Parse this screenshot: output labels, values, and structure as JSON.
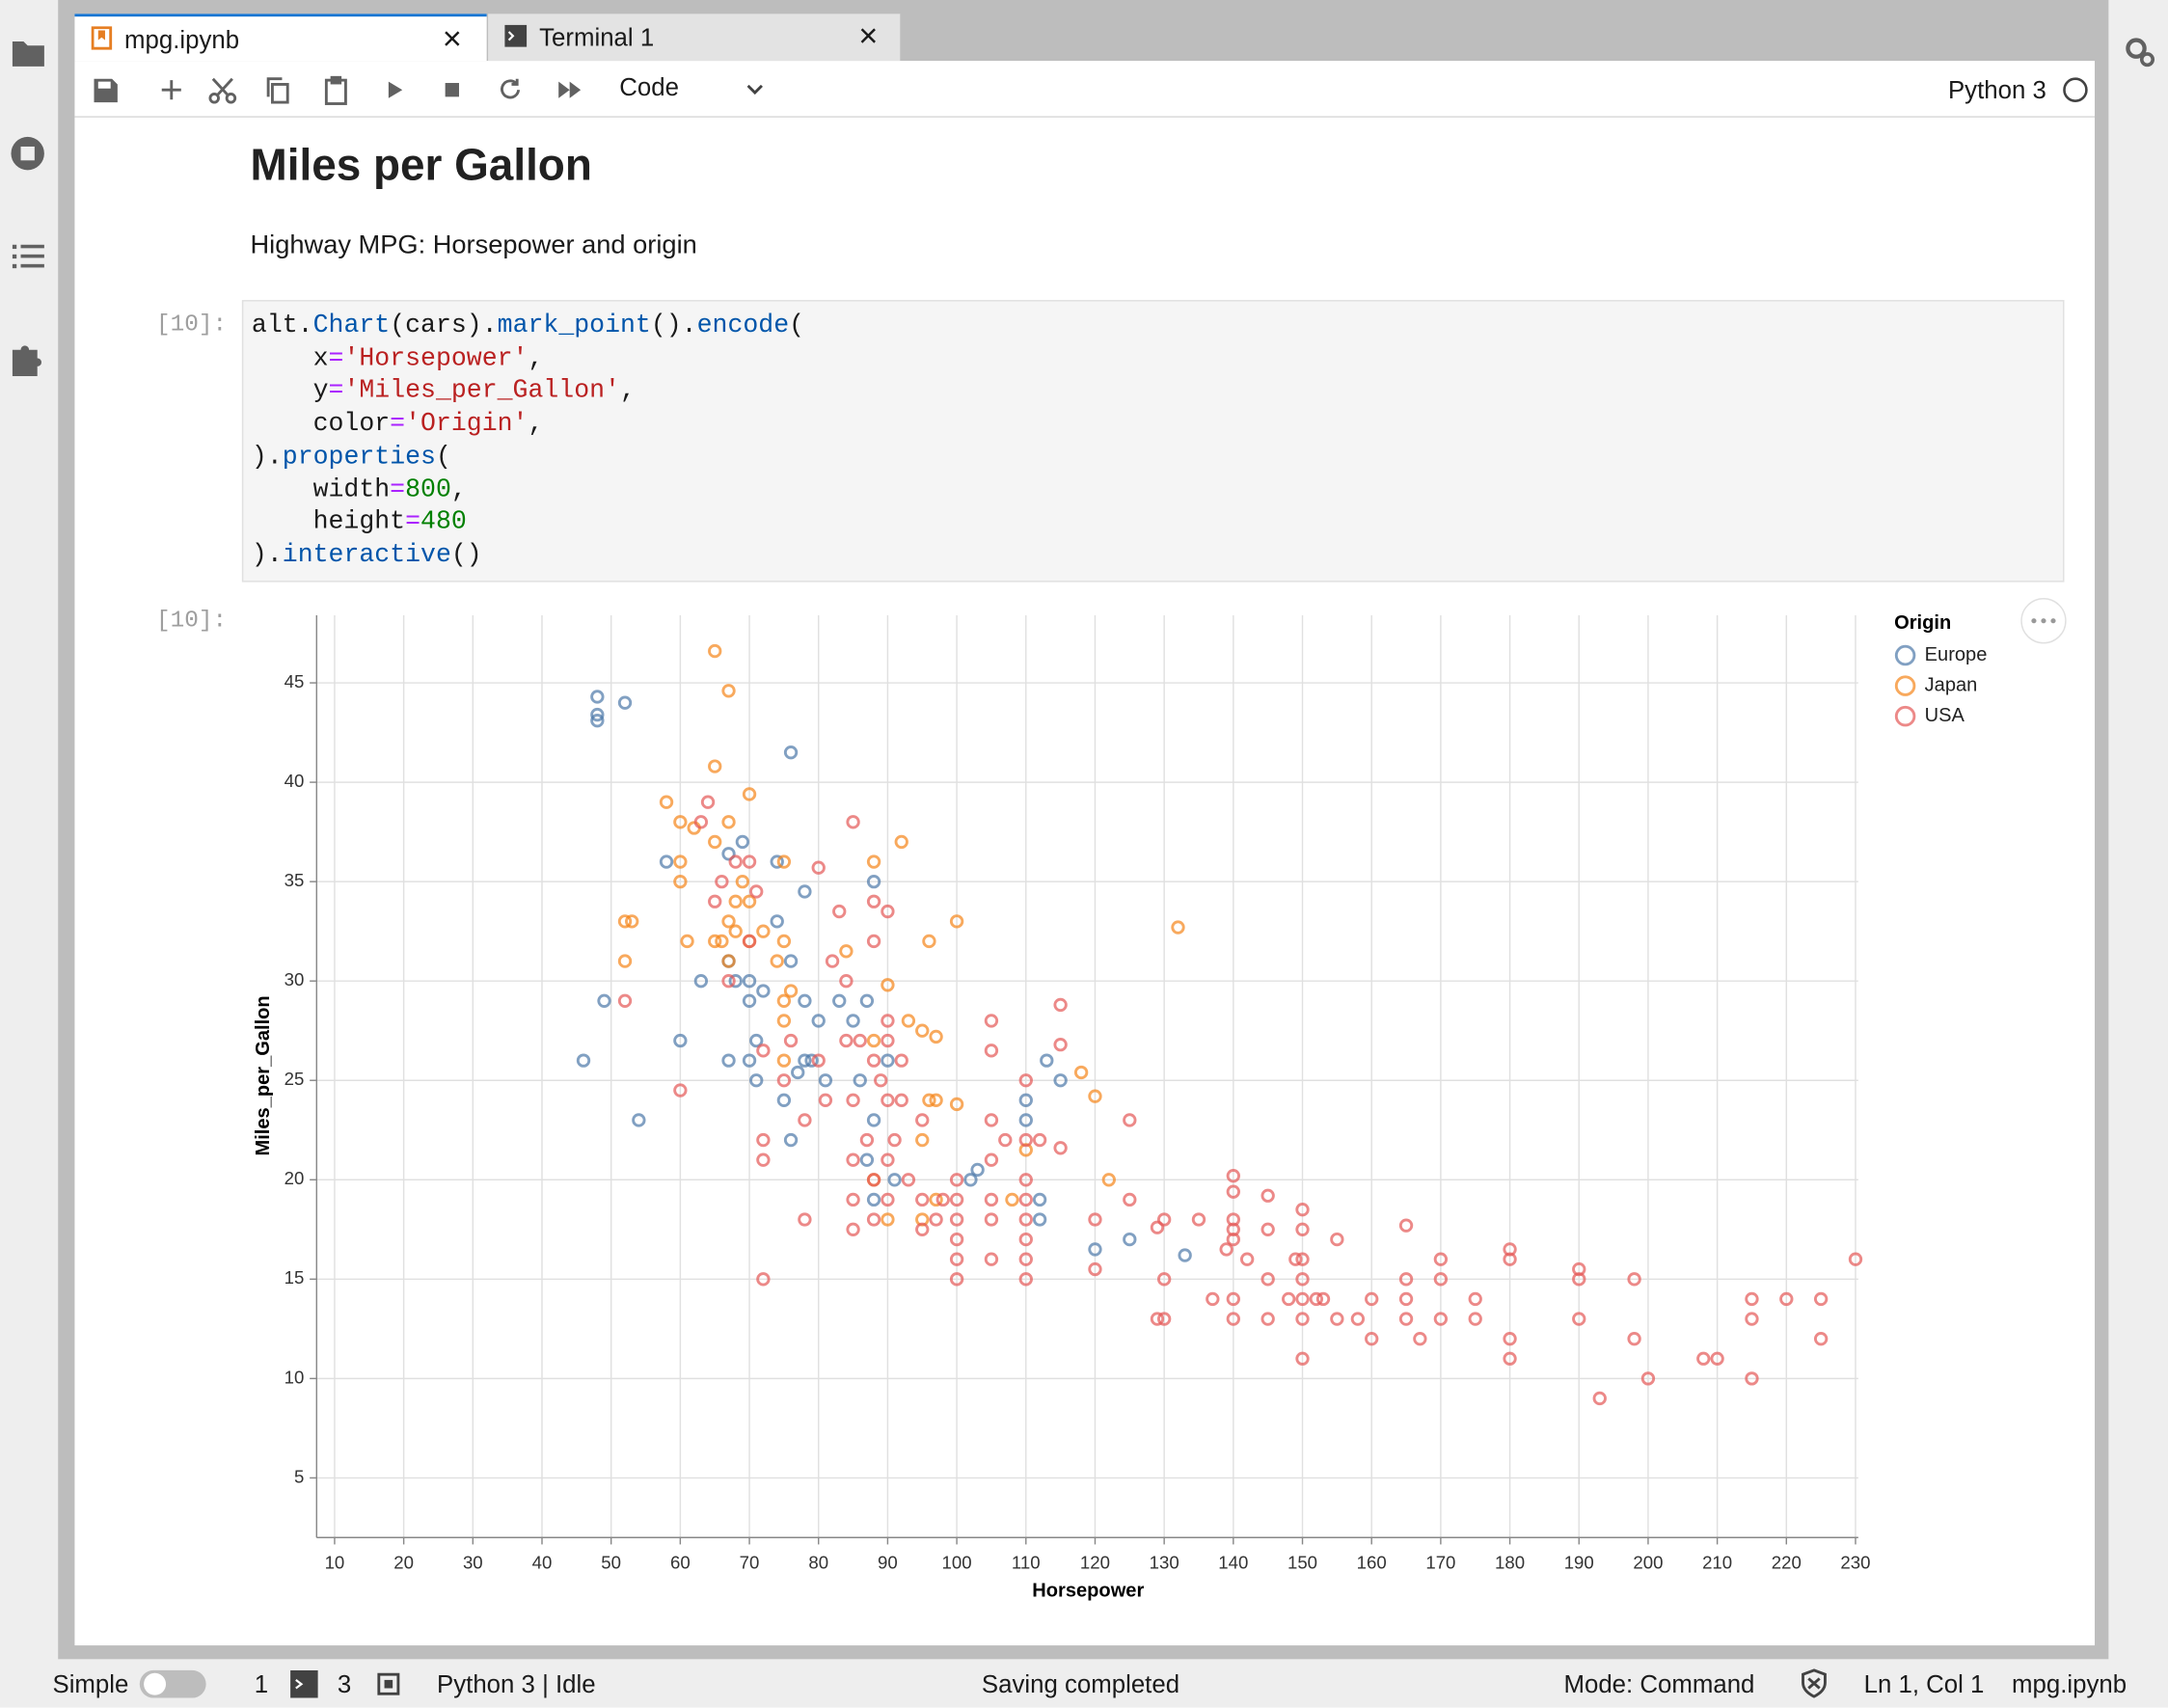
{
  "tabs": [
    "mpg.ipynb",
    "Terminal 1"
  ],
  "toolbar": {
    "cell_type": "Code",
    "kernel": "Python 3"
  },
  "notebook": {
    "heading": "Miles per Gallon",
    "text": "Highway MPG: Horsepower and origin",
    "input_prompt": "[10]:",
    "output_prompt": "[10]:",
    "code_lines": [
      "alt.Chart(cars).mark_point().encode(",
      "    x='Horsepower',",
      "    y='Miles_per_Gallon',",
      "    color='Origin',",
      ").properties(",
      "    width=800,",
      "    height=480",
      ").interactive()"
    ]
  },
  "chart_data": {
    "type": "scatter",
    "x_label": "Horsepower",
    "y_label": "Miles_per_Gallon",
    "xlim": [
      7.4,
      230.4
    ],
    "ylim": [
      2,
      48.4
    ],
    "xticks": [
      10,
      20,
      30,
      40,
      50,
      60,
      70,
      80,
      90,
      100,
      110,
      120,
      130,
      140,
      150,
      160,
      170,
      180,
      190,
      200,
      210,
      220,
      230
    ],
    "yticks": [
      5,
      10,
      15,
      20,
      25,
      30,
      35,
      40,
      45
    ],
    "grid": true,
    "legend_title": "Origin",
    "legend": "right",
    "series": [
      {
        "name": "Europe",
        "color": "#4c78a8",
        "x": [
          46,
          48,
          48,
          48,
          49,
          52,
          54,
          60,
          63,
          67,
          67,
          68,
          69,
          70,
          70,
          70,
          71,
          71,
          72,
          74,
          75,
          76,
          76,
          78,
          78,
          78,
          80,
          81,
          83,
          85,
          86,
          87,
          88,
          88,
          88,
          90,
          91,
          102,
          103,
          110,
          110,
          112,
          112,
          113,
          115,
          120,
          125,
          133,
          58,
          67,
          74,
          76,
          77,
          79,
          87
        ],
        "values": [
          26,
          43.1,
          43.4,
          44.3,
          29,
          44,
          23,
          27,
          30,
          26,
          31,
          30,
          37,
          30,
          29,
          26,
          27,
          25,
          29.5,
          33,
          24,
          41.5,
          22,
          34.5,
          29,
          26,
          28,
          25,
          29,
          28,
          25,
          21,
          35,
          23,
          19,
          26,
          20,
          20,
          20.5,
          24,
          23,
          19,
          18,
          26,
          25,
          16.5,
          17,
          16.2,
          36,
          36.4,
          36,
          31,
          25.4,
          26,
          29
        ]
      },
      {
        "name": "Japan",
        "color": "#f58518",
        "x": [
          52,
          53,
          52,
          58,
          60,
          60,
          60,
          61,
          62,
          65,
          65,
          65,
          65,
          66,
          67,
          67,
          67,
          67,
          68,
          68,
          69,
          70,
          70,
          70,
          72,
          74,
          75,
          75,
          75,
          75,
          75,
          76,
          84,
          88,
          88,
          90,
          92,
          93,
          95,
          95,
          96,
          97,
          97,
          100,
          100,
          96,
          118,
          120,
          122,
          132,
          108,
          95,
          90,
          110,
          97,
          88
        ],
        "values": [
          33,
          33,
          31,
          39,
          38,
          36,
          35,
          32,
          37.7,
          46.6,
          40.8,
          37,
          32,
          32,
          44.6,
          38,
          33,
          31,
          34,
          32.5,
          35,
          39.4,
          34,
          32,
          32.5,
          31,
          36,
          32,
          29,
          26,
          28,
          29.5,
          31.5,
          36,
          27,
          29.8,
          37,
          28,
          27.5,
          22,
          24,
          27.2,
          19,
          23.8,
          33,
          32,
          25.4,
          24.2,
          20,
          32.7,
          19,
          18,
          18,
          21.5,
          24,
          20
        ]
      },
      {
        "name": "USA",
        "color": "#e45756",
        "x": [
          52,
          60,
          63,
          64,
          65,
          66,
          67,
          68,
          70,
          70,
          71,
          72,
          72,
          72,
          72,
          75,
          76,
          78,
          78,
          80,
          80,
          81,
          82,
          83,
          84,
          84,
          85,
          85,
          85,
          85,
          85,
          86,
          87,
          88,
          88,
          88,
          88,
          88,
          89,
          90,
          90,
          90,
          90,
          90,
          90,
          91,
          92,
          92,
          93,
          95,
          95,
          95,
          97,
          98,
          100,
          100,
          100,
          100,
          100,
          100,
          105,
          105,
          105,
          105,
          105,
          105,
          105,
          107,
          110,
          110,
          110,
          110,
          110,
          110,
          110,
          110,
          112,
          115,
          115,
          115,
          120,
          120,
          125,
          125,
          129,
          129,
          130,
          130,
          130,
          135,
          137,
          139,
          140,
          140,
          140,
          140,
          140,
          140,
          140,
          142,
          145,
          145,
          145,
          145,
          148,
          149,
          150,
          150,
          150,
          150,
          150,
          150,
          150,
          152,
          153,
          155,
          155,
          158,
          160,
          160,
          165,
          165,
          165,
          165,
          167,
          170,
          170,
          170,
          175,
          175,
          180,
          180,
          180,
          180,
          190,
          190,
          190,
          193,
          198,
          198,
          200,
          208,
          210,
          215,
          215,
          215,
          220,
          225,
          225,
          230
        ],
        "values": [
          29,
          24.5,
          38,
          39,
          34,
          35,
          30,
          36,
          32,
          36,
          34.5,
          26.5,
          22,
          21,
          15,
          25,
          27,
          18,
          23,
          35.7,
          26,
          24,
          31,
          33.5,
          30,
          27,
          38,
          24,
          21,
          19,
          17.5,
          27,
          22,
          34,
          32,
          26,
          20,
          18,
          25,
          33.5,
          28,
          27,
          24,
          21,
          19,
          22,
          26,
          24,
          20,
          23,
          19,
          17.5,
          18,
          19,
          20,
          19,
          18,
          17,
          16,
          15,
          28,
          26.5,
          23,
          21,
          19,
          18,
          16,
          22,
          25,
          22,
          20,
          19,
          18,
          17,
          16,
          15,
          22,
          28.8,
          26.8,
          21.6,
          18,
          15.5,
          23,
          19,
          17.6,
          13,
          18,
          15,
          13,
          18,
          14,
          16.5,
          20.2,
          19.4,
          18,
          17.5,
          17,
          14,
          13,
          16,
          19.2,
          17.5,
          15,
          13,
          14,
          16,
          18.5,
          17.5,
          16,
          15,
          14,
          13,
          11,
          14,
          14,
          17,
          13,
          13,
          14,
          12,
          17.7,
          15,
          14,
          13,
          12,
          16,
          15,
          13,
          14,
          13,
          16.5,
          16,
          12,
          11,
          15.5,
          15,
          13,
          9,
          15,
          12,
          10,
          11,
          11,
          14,
          13,
          10,
          14,
          14,
          12,
          16
        ]
      }
    ]
  },
  "status_bar": {
    "mode_label": "Simple",
    "terminals": "1",
    "kernels": "3",
    "kernel_status": "Python 3 | Idle",
    "message": "Saving completed",
    "mode": "Mode: Command",
    "position": "Ln 1, Col 1",
    "file": "mpg.ipynb"
  }
}
